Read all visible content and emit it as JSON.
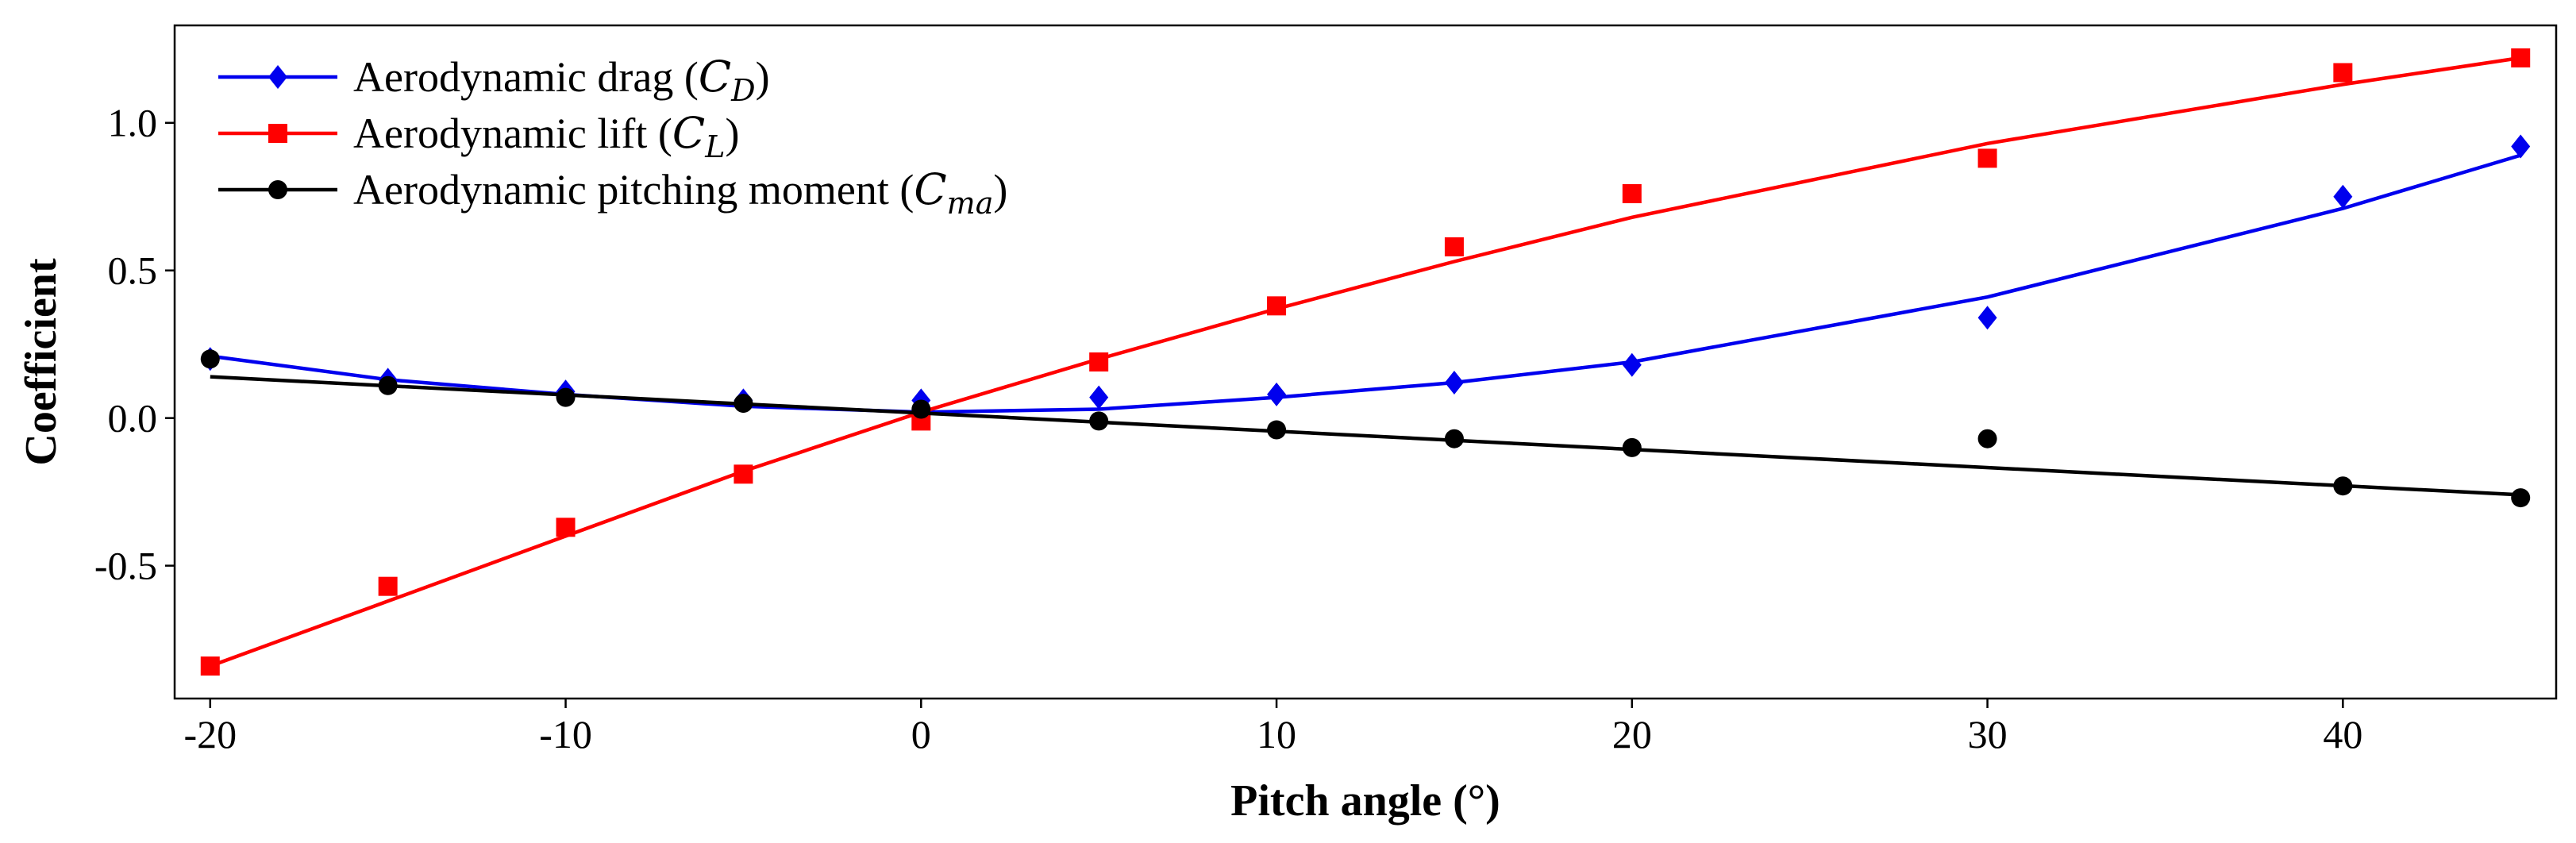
{
  "chart_data": {
    "type": "line",
    "title": "",
    "xlabel": "Pitch angle (°)",
    "ylabel": "Coefficient",
    "xlim": [
      -21,
      46
    ],
    "ylim": [
      -0.95,
      1.33
    ],
    "xticks": [
      -20,
      -10,
      0,
      10,
      20,
      30,
      40
    ],
    "xtick_labels": [
      "-20",
      "-10",
      "0",
      "10",
      "20",
      "30",
      "40"
    ],
    "yticks": [
      -0.5,
      0.0,
      0.5,
      1.0
    ],
    "ytick_labels": [
      "-0.5",
      "0.0",
      "0.5",
      "1.0"
    ],
    "grid": false,
    "legend_position": "top-left",
    "series": [
      {
        "name": "Aerodynamic drag",
        "legend_prefix": "Aerodynamic drag (",
        "legend_symbol": "C",
        "legend_subscript": "D",
        "legend_suffix": ")",
        "color": "#0000ee",
        "marker": "diamond",
        "points_x": [
          -20,
          -15,
          -10,
          -5,
          0,
          5,
          10,
          15,
          20,
          30,
          40,
          45
        ],
        "points_y": [
          0.2,
          0.13,
          0.09,
          0.06,
          0.06,
          0.07,
          0.08,
          0.12,
          0.18,
          0.34,
          0.75,
          0.92
        ],
        "fit_x": [
          -20,
          -15,
          -10,
          -5,
          0,
          5,
          10,
          15,
          20,
          30,
          40,
          45
        ],
        "fit_y": [
          0.21,
          0.13,
          0.08,
          0.04,
          0.02,
          0.03,
          0.07,
          0.12,
          0.19,
          0.41,
          0.71,
          0.89
        ]
      },
      {
        "name": "Aerodynamic lift",
        "legend_prefix": "Aerodynamic lift (",
        "legend_symbol": "C",
        "legend_subscript": "L",
        "legend_suffix": ")",
        "color": "#ff0000",
        "marker": "square",
        "points_x": [
          -20,
          -15,
          -10,
          -5,
          0,
          5,
          10,
          15,
          20,
          30,
          40,
          45
        ],
        "points_y": [
          -0.84,
          -0.57,
          -0.37,
          -0.19,
          -0.01,
          0.19,
          0.38,
          0.58,
          0.76,
          0.88,
          1.17,
          1.22
        ],
        "fit_x": [
          -20,
          -15,
          -10,
          -5,
          0,
          5,
          10,
          15,
          20,
          30,
          40,
          45
        ],
        "fit_y": [
          -0.84,
          -0.62,
          -0.4,
          -0.18,
          0.02,
          0.2,
          0.37,
          0.53,
          0.68,
          0.93,
          1.13,
          1.22
        ]
      },
      {
        "name": "Aerodynamic pitching moment",
        "legend_prefix": "Aerodynamic pitching moment (",
        "legend_symbol": "C",
        "legend_subscript": "ma",
        "legend_suffix": ")",
        "color": "#000000",
        "marker": "circle",
        "points_x": [
          -20,
          -15,
          -10,
          -5,
          0,
          5,
          10,
          15,
          20,
          30,
          40,
          45
        ],
        "points_y": [
          0.2,
          0.11,
          0.07,
          0.05,
          0.03,
          -0.01,
          -0.04,
          -0.07,
          -0.1,
          -0.07,
          -0.23,
          -0.27
        ],
        "fit_x": [
          -20,
          45
        ],
        "fit_y": [
          0.14,
          -0.26
        ]
      }
    ]
  }
}
